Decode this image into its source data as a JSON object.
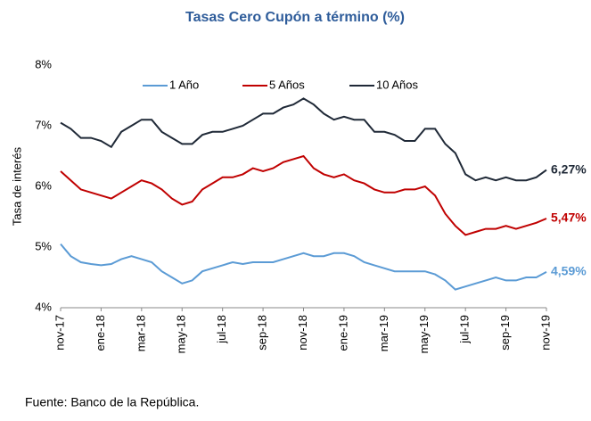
{
  "chart_data": {
    "type": "line",
    "title": "Tasas Cero Cupón a término (%)",
    "y_label": "Tasa de interés",
    "source": "Fuente: Banco de la República.",
    "categories": [
      "nov-17",
      null,
      null,
      null,
      "ene-18",
      null,
      null,
      null,
      "mar-18",
      null,
      null,
      null,
      "may-18",
      null,
      null,
      null,
      "jul-18",
      null,
      null,
      null,
      "sep-18",
      null,
      null,
      null,
      "nov-18",
      null,
      null,
      null,
      "ene-19",
      null,
      null,
      null,
      "mar-19",
      null,
      null,
      null,
      "may-19",
      null,
      null,
      null,
      "jul-19",
      null,
      null,
      null,
      "sep-19",
      null,
      null,
      null,
      "nov-19"
    ],
    "series": [
      {
        "name": "1 Año",
        "color": "#5b9bd5",
        "end_label": "4,59%",
        "values": [
          5.05,
          4.85,
          4.75,
          4.72,
          4.7,
          4.72,
          4.8,
          4.85,
          4.8,
          4.75,
          4.6,
          4.5,
          4.4,
          4.45,
          4.6,
          4.65,
          4.7,
          4.75,
          4.72,
          4.75,
          4.75,
          4.75,
          4.8,
          4.85,
          4.9,
          4.85,
          4.85,
          4.9,
          4.9,
          4.85,
          4.75,
          4.7,
          4.65,
          4.6,
          4.6,
          4.6,
          4.6,
          4.55,
          4.45,
          4.3,
          4.35,
          4.4,
          4.45,
          4.5,
          4.45,
          4.45,
          4.5,
          4.5,
          4.59
        ]
      },
      {
        "name": "5 Años",
        "color": "#c00000",
        "end_label": "5,47%",
        "values": [
          6.25,
          6.1,
          5.95,
          5.9,
          5.85,
          5.8,
          5.9,
          6.0,
          6.1,
          6.05,
          5.95,
          5.8,
          5.7,
          5.75,
          5.95,
          6.05,
          6.15,
          6.15,
          6.2,
          6.3,
          6.25,
          6.3,
          6.4,
          6.45,
          6.5,
          6.3,
          6.2,
          6.15,
          6.2,
          6.1,
          6.05,
          5.95,
          5.9,
          5.9,
          5.95,
          5.95,
          6.0,
          5.85,
          5.55,
          5.35,
          5.2,
          5.25,
          5.3,
          5.3,
          5.35,
          5.3,
          5.35,
          5.4,
          5.47
        ]
      },
      {
        "name": "10 Años",
        "color": "#1f2937",
        "end_label": "6,27%",
        "values": [
          7.05,
          6.95,
          6.8,
          6.8,
          6.75,
          6.65,
          6.9,
          7.0,
          7.1,
          7.1,
          6.9,
          6.8,
          6.7,
          6.7,
          6.85,
          6.9,
          6.9,
          6.95,
          7.0,
          7.1,
          7.2,
          7.2,
          7.3,
          7.35,
          7.45,
          7.35,
          7.2,
          7.1,
          7.15,
          7.1,
          7.1,
          6.9,
          6.9,
          6.85,
          6.75,
          6.75,
          6.95,
          6.95,
          6.7,
          6.55,
          6.2,
          6.1,
          6.15,
          6.1,
          6.15,
          6.1,
          6.1,
          6.15,
          6.27
        ]
      }
    ],
    "ylim": [
      4,
      8
    ],
    "yticks": [
      {
        "value": 4,
        "label": "4%"
      },
      {
        "value": 5,
        "label": "5%"
      },
      {
        "value": 6,
        "label": "6%"
      },
      {
        "value": 7,
        "label": "7%"
      },
      {
        "value": 8,
        "label": "8%"
      }
    ],
    "grid": false,
    "legend": "top"
  }
}
